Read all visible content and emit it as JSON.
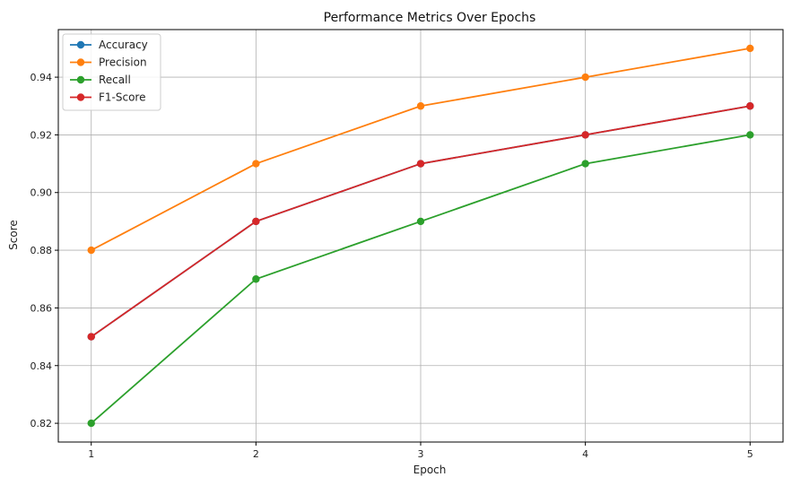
{
  "chart_data": {
    "type": "line",
    "title": "Performance Metrics Over Epochs",
    "xlabel": "Epoch",
    "ylabel": "Score",
    "x": [
      1,
      2,
      3,
      4,
      5
    ],
    "xticks": [
      "1",
      "2",
      "3",
      "4",
      "5"
    ],
    "xlim": [
      0.8,
      5.2
    ],
    "ylim": [
      0.8135,
      0.9565
    ],
    "yticks": [
      "0.82",
      "0.84",
      "0.86",
      "0.88",
      "0.90",
      "0.92",
      "0.94"
    ],
    "grid": true,
    "legend_position": "top-left",
    "series": [
      {
        "name": "Accuracy",
        "color": "#1f77b4",
        "values": [
          0.85,
          0.89,
          0.91,
          0.92,
          0.93
        ]
      },
      {
        "name": "Precision",
        "color": "#ff7f0e",
        "values": [
          0.88,
          0.91,
          0.93,
          0.94,
          0.95
        ]
      },
      {
        "name": "Recall",
        "color": "#2ca02c",
        "values": [
          0.82,
          0.87,
          0.89,
          0.91,
          0.92
        ]
      },
      {
        "name": "F1-Score",
        "color": "#d62728",
        "values": [
          0.85,
          0.89,
          0.91,
          0.92,
          0.93
        ]
      }
    ]
  }
}
